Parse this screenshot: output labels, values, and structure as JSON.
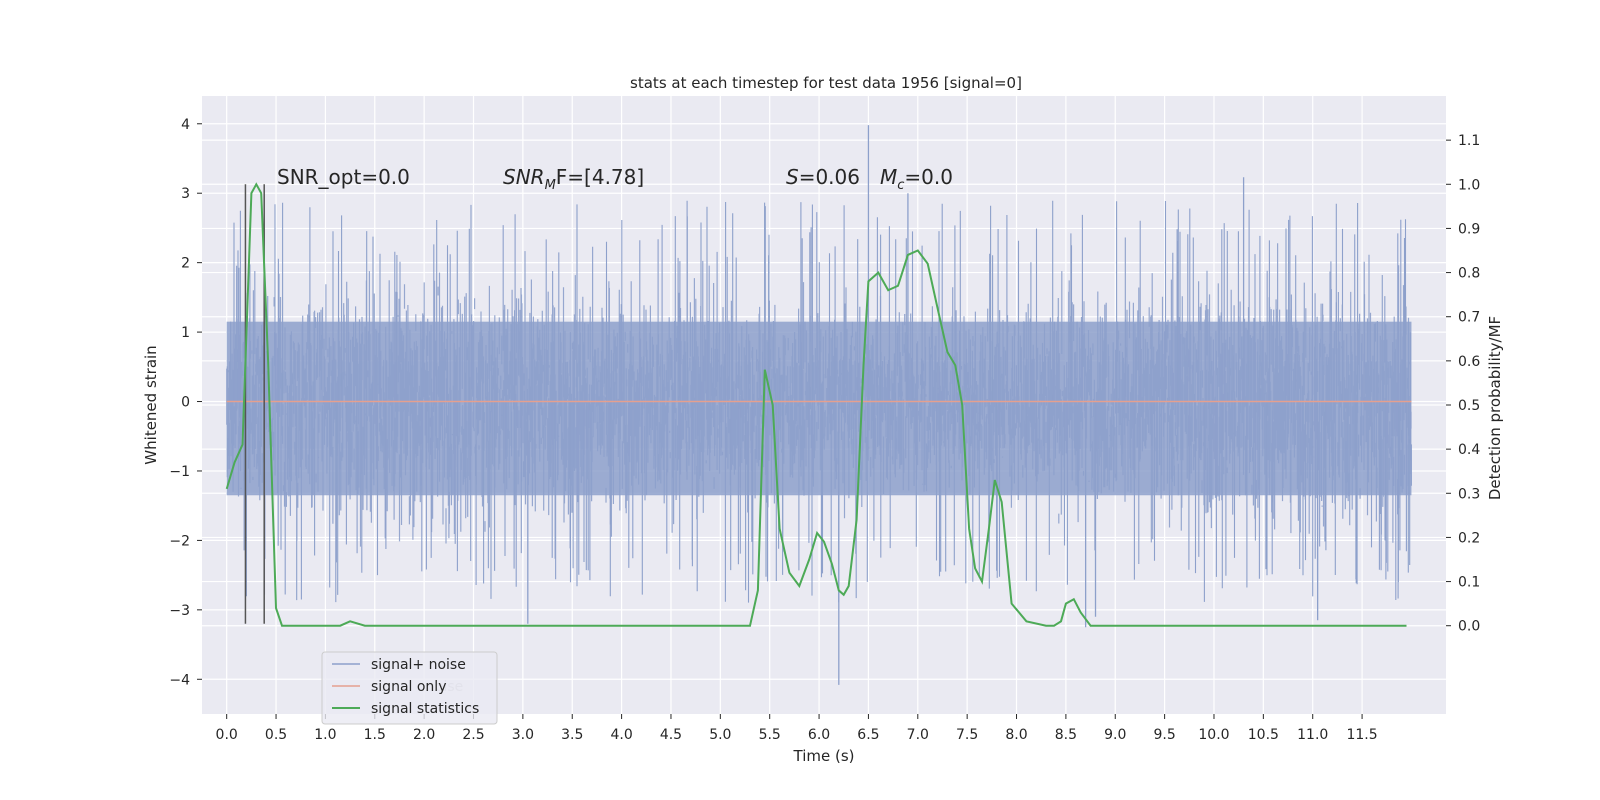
{
  "chart_data": {
    "type": "line",
    "title": "stats at each timestep for test data 1956 [signal=0]",
    "xlabel": "Time (s)",
    "ylabel_left": "Whitened strain",
    "ylabel_right": "Detection probability/MF",
    "xlim": [
      -0.25,
      12.35
    ],
    "ylim_left": [
      -4.5,
      4.4
    ],
    "ylim_right": [
      -0.2,
      1.2
    ],
    "x_ticks": [
      "0.0",
      "0.5",
      "1.0",
      "1.5",
      "2.0",
      "2.5",
      "3.0",
      "3.5",
      "4.0",
      "4.5",
      "5.0",
      "5.5",
      "6.0",
      "6.5",
      "7.0",
      "7.5",
      "8.0",
      "8.5",
      "9.0",
      "9.5",
      "10.0",
      "10.5",
      "11.0",
      "11.5"
    ],
    "y_left_ticks": [
      "4",
      "3",
      "2",
      "1",
      "0",
      "−1",
      "−2",
      "−3",
      "−4"
    ],
    "y_right_ticks": [
      "1.1",
      "1.0",
      "0.9",
      "0.8",
      "0.7",
      "0.6",
      "0.5",
      "0.4",
      "0.3",
      "0.2",
      "0.1",
      "0.0"
    ],
    "grid": true,
    "legend_position": "lower-left",
    "annotations": {
      "snr_opt": "SNR_opt=0.0",
      "snr_mf_main": "SNR",
      "snr_mf_sub": "M",
      "snr_mf_rest": "F=[4.78]",
      "s_symbol": "S",
      "s_value": "=0.06",
      "mc_symbol": "M",
      "mc_sub": "c",
      "mc_value": "=0.0"
    },
    "vlines_x": [
      0.19,
      0.38
    ],
    "series": [
      {
        "name": "signal+ noise",
        "color": "#8da0cb",
        "axis": "left",
        "x_range": [
          0.0,
          12.0
        ],
        "typical_envelope": [
          -2.0,
          2.1
        ],
        "peaks": [
          [
            6.5,
            3.98
          ],
          [
            6.2,
            -4.08
          ],
          [
            3.05,
            -3.2
          ],
          [
            8.7,
            -3.25
          ],
          [
            8.8,
            -3.1
          ],
          [
            11.05,
            -3.15
          ],
          [
            10.3,
            3.23
          ],
          [
            6.9,
            3.0
          ]
        ]
      },
      {
        "name": "signal only",
        "color": "#e5a08f",
        "axis": "left",
        "x": [
          0.0,
          12.0
        ],
        "y": [
          0.0,
          0.0
        ]
      },
      {
        "name": "signal statistics",
        "color": "#4daa57",
        "axis": "right",
        "x": [
          0.0,
          0.08,
          0.16,
          0.2,
          0.25,
          0.3,
          0.35,
          0.42,
          0.5,
          0.56,
          0.62,
          0.8,
          1.0,
          1.15,
          1.25,
          1.4,
          2.0,
          3.0,
          4.0,
          5.0,
          5.3,
          5.38,
          5.45,
          5.53,
          5.6,
          5.7,
          5.8,
          5.9,
          5.98,
          6.05,
          6.13,
          6.2,
          6.25,
          6.3,
          6.38,
          6.45,
          6.5,
          6.6,
          6.7,
          6.8,
          6.9,
          7.0,
          7.1,
          7.2,
          7.3,
          7.38,
          7.45,
          7.52,
          7.58,
          7.65,
          7.72,
          7.78,
          7.85,
          7.95,
          8.1,
          8.3,
          8.38,
          8.45,
          8.5,
          8.58,
          8.65,
          8.75,
          9.0,
          9.5,
          10.0,
          10.5,
          10.75,
          11.0,
          11.5,
          11.95
        ],
        "y": [
          0.31,
          0.37,
          0.41,
          0.66,
          0.98,
          1.0,
          0.98,
          0.6,
          0.04,
          0.0,
          0.0,
          0.0,
          0.0,
          0.0,
          0.01,
          0.0,
          0.0,
          0.0,
          0.0,
          0.0,
          0.0,
          0.08,
          0.58,
          0.5,
          0.22,
          0.12,
          0.09,
          0.15,
          0.21,
          0.19,
          0.14,
          0.08,
          0.07,
          0.09,
          0.24,
          0.59,
          0.78,
          0.8,
          0.76,
          0.77,
          0.84,
          0.85,
          0.82,
          0.72,
          0.62,
          0.59,
          0.5,
          0.22,
          0.13,
          0.1,
          0.22,
          0.33,
          0.28,
          0.05,
          0.01,
          0.0,
          0.0,
          0.01,
          0.05,
          0.06,
          0.03,
          0.0,
          0.0,
          0.0,
          0.0,
          0.0,
          0.0,
          0.0,
          0.0,
          0.0
        ]
      }
    ],
    "legend_overlay_text": "noise"
  }
}
